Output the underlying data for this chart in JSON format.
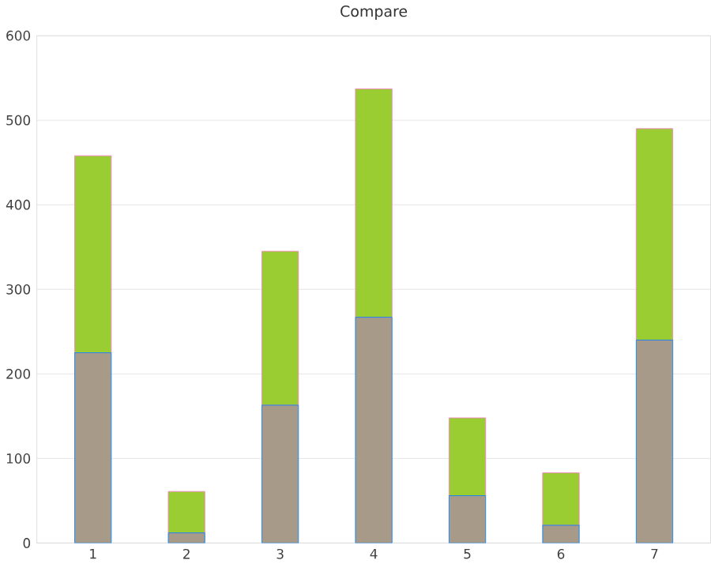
{
  "chart_data": {
    "type": "bar",
    "title": "Compare",
    "stacked": true,
    "grid": "y",
    "categories": [
      "1",
      "2",
      "3",
      "4",
      "5",
      "6",
      "7"
    ],
    "series": [
      {
        "color": "#a89a88",
        "values": [
          225,
          12,
          163,
          267,
          56,
          21,
          240
        ]
      },
      {
        "color": "#9acd32",
        "values": [
          233,
          49,
          182,
          270,
          92,
          62,
          250
        ]
      }
    ],
    "ylim": [
      0,
      600
    ],
    "yticks": [
      0,
      100,
      200,
      300,
      400,
      500,
      600
    ]
  }
}
